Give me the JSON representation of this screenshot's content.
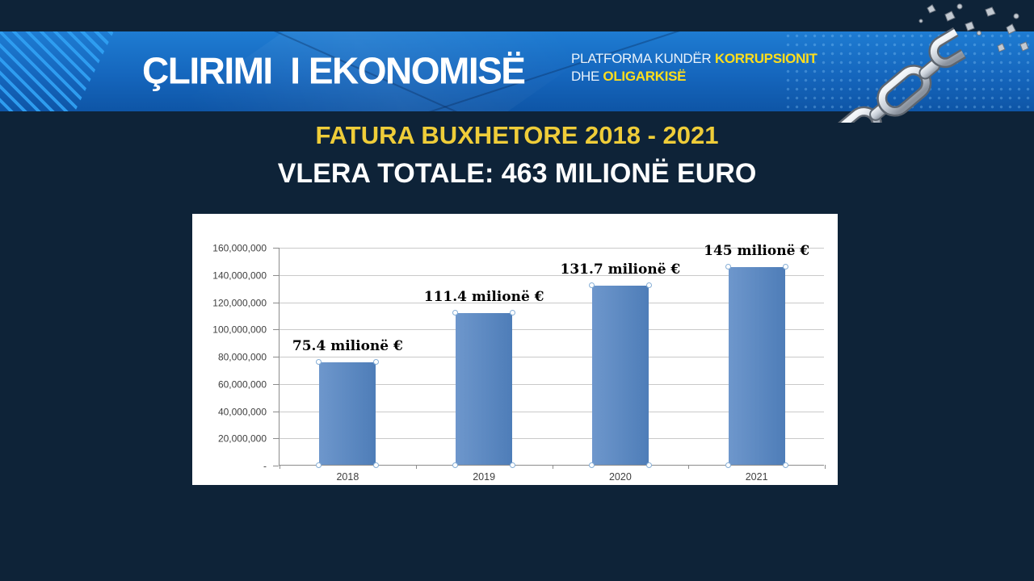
{
  "banner": {
    "brand": "ÇLIRIMI  I EKONOMISË",
    "tagline": {
      "l1_white": "PLATFORMA KUNDËR ",
      "l1_yellow": "KORRUPSIONIT",
      "l2_white": "DHE ",
      "l2_yellow": "OLIGARKISË"
    }
  },
  "headings": {
    "title": "FATURA BUXHETORE 2018 - 2021",
    "subtitle": "VLERA TOTALE: 463 MILIONË EURO"
  },
  "chart_data": {
    "type": "bar",
    "categories": [
      "2018",
      "2019",
      "2020",
      "2021"
    ],
    "values": [
      75400000,
      111400000,
      131700000,
      145000000
    ],
    "data_labels": [
      "75.4 milionë €",
      "111.4 milionë €",
      "131.7 milionë €",
      "145 milionë €"
    ],
    "y_ticks": [
      "160,000,000",
      "140,000,000",
      "120,000,000",
      "100,000,000",
      "80,000,000",
      "60,000,000",
      "40,000,000",
      "20,000,000",
      "-"
    ],
    "ylim": [
      0,
      160000000
    ],
    "grid": true,
    "legend": "none",
    "title": "",
    "xlabel": "",
    "ylabel": "",
    "bar_color": "#4E7DB8",
    "bar_color_light": "#6E97CC"
  },
  "colors": {
    "background_navy": "#0E2338",
    "banner_blue": "#1566BD",
    "stripe_blue": "#2F9FF2",
    "accent_yellow_title": "#EFCD39",
    "accent_yellow_tagline": "#FFDE1C",
    "gridline_gray": "#C9C9C9"
  },
  "icons": {
    "broken_chain": "broken-chain-icon"
  }
}
